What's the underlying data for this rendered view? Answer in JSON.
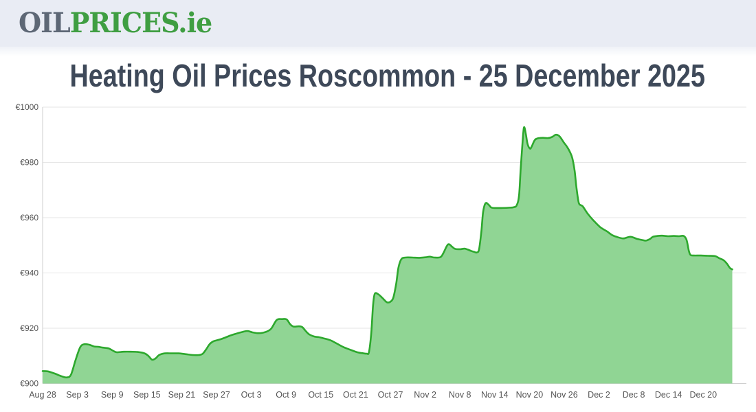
{
  "page": {
    "background": "#ffffff",
    "header_background": "#e9ecf4"
  },
  "header": {
    "logo": {
      "part_oil": "OIL",
      "part_prices": "PRICES",
      "part_ie": ".ie",
      "oil_color": "#5d6775",
      "green_color": "#3f9e42"
    }
  },
  "main": {
    "title": "Heating Oil Prices Roscommon - 25 December 2025",
    "title_color": "#3e4959"
  },
  "chart_data": {
    "type": "area",
    "title": "Heating Oil Prices Roscommon - 25 December 2025",
    "series_name": "Heating Oil Price Roscommon",
    "unit": "€",
    "ylim": [
      900,
      1000
    ],
    "y_ticks": [
      900,
      920,
      940,
      960,
      980,
      1000
    ],
    "y_tick_labels": [
      "€900",
      "€920",
      "€940",
      "€960",
      "€980",
      "€1000"
    ],
    "x_tick_labels": [
      "Aug 28",
      "Sep 3",
      "Sep 9",
      "Sep 15",
      "Sep 21",
      "Sep 27",
      "Oct 3",
      "Oct 9",
      "Oct 15",
      "Oct 21",
      "Oct 27",
      "Nov 2",
      "Nov 8",
      "Nov 14",
      "Nov 20",
      "Nov 26",
      "Dec 2",
      "Dec 8",
      "Dec 14",
      "Dec 20"
    ],
    "x_tick_days": [
      0,
      6,
      12,
      18,
      24,
      30,
      36,
      42,
      48,
      54,
      60,
      66,
      72,
      78,
      84,
      90,
      96,
      102,
      108,
      114
    ],
    "x_domain_days": [
      0,
      119
    ],
    "grid": "horizontal-only",
    "legend": "none",
    "line_color": "#2da82d",
    "fill_color": "#90d594",
    "axis_line_color": "#cfcfcf",
    "gridline_color": "#e6e6e6",
    "tick_label_color": "#555555",
    "points_day_price": [
      [
        0,
        904.5
      ],
      [
        0.9,
        904.4
      ],
      [
        2.1,
        903.6
      ],
      [
        3.3,
        902.6
      ],
      [
        4.2,
        902.2
      ],
      [
        4.9,
        903.2
      ],
      [
        5.7,
        908.6
      ],
      [
        6.5,
        913.2
      ],
      [
        7.2,
        914.2
      ],
      [
        8.1,
        914.0
      ],
      [
        8.9,
        913.4
      ],
      [
        9.6,
        913.3
      ],
      [
        10.4,
        913.0
      ],
      [
        11.4,
        912.7
      ],
      [
        12.2,
        911.8
      ],
      [
        12.8,
        911.3
      ],
      [
        14,
        911.5
      ],
      [
        15.2,
        911.5
      ],
      [
        16.4,
        911.4
      ],
      [
        17.6,
        910.9
      ],
      [
        18.3,
        909.9
      ],
      [
        18.9,
        908.6
      ],
      [
        19.5,
        909.1
      ],
      [
        20.1,
        910.3
      ],
      [
        21.1,
        910.9
      ],
      [
        22.3,
        910.9
      ],
      [
        23.5,
        910.9
      ],
      [
        24.7,
        910.6
      ],
      [
        25.9,
        910.3
      ],
      [
        27,
        910.3
      ],
      [
        27.6,
        910.7
      ],
      [
        28.2,
        912.3
      ],
      [
        28.8,
        914.2
      ],
      [
        29.4,
        915.2
      ],
      [
        30.2,
        915.7
      ],
      [
        31.1,
        916.3
      ],
      [
        32.3,
        917.3
      ],
      [
        33,
        917.8
      ],
      [
        34.2,
        918.5
      ],
      [
        35.3,
        919
      ],
      [
        36.2,
        918.5
      ],
      [
        37.1,
        918.2
      ],
      [
        38.1,
        918.4
      ],
      [
        38.9,
        919
      ],
      [
        39.5,
        920
      ],
      [
        40.4,
        923
      ],
      [
        41.3,
        923.3
      ],
      [
        42.1,
        923.2
      ],
      [
        42.7,
        921.5
      ],
      [
        43.3,
        920.6
      ],
      [
        44.2,
        920.7
      ],
      [
        44.8,
        920.4
      ],
      [
        45.4,
        919
      ],
      [
        46,
        917.8
      ],
      [
        46.9,
        917
      ],
      [
        47.6,
        916.8
      ],
      [
        48.4,
        916.4
      ],
      [
        49.6,
        915.7
      ],
      [
        50.8,
        914.4
      ],
      [
        51.9,
        913.2
      ],
      [
        53.1,
        912.2
      ],
      [
        54.3,
        911.3
      ],
      [
        55.1,
        911
      ],
      [
        55.9,
        910.8
      ],
      [
        56.3,
        911.3
      ],
      [
        56.7,
        918
      ],
      [
        57,
        928
      ],
      [
        57.3,
        932.4
      ],
      [
        57.9,
        932.3
      ],
      [
        58.6,
        931
      ],
      [
        59.4,
        929.4
      ],
      [
        60,
        929.6
      ],
      [
        60.5,
        931
      ],
      [
        61,
        936
      ],
      [
        61.4,
        942
      ],
      [
        61.9,
        945
      ],
      [
        62.6,
        945.6
      ],
      [
        63.8,
        945.6
      ],
      [
        65,
        945.5
      ],
      [
        66.2,
        945.7
      ],
      [
        66.8,
        945.9
      ],
      [
        67.6,
        945.6
      ],
      [
        68.6,
        945.7
      ],
      [
        69.1,
        947
      ],
      [
        69.7,
        949.6
      ],
      [
        70.1,
        950.4
      ],
      [
        70.7,
        949.4
      ],
      [
        71.2,
        948.7
      ],
      [
        72.1,
        948.6
      ],
      [
        72.8,
        948.8
      ],
      [
        73.3,
        948.5
      ],
      [
        73.9,
        948
      ],
      [
        74.5,
        947.6
      ],
      [
        74.9,
        947.4
      ],
      [
        75.3,
        948.5
      ],
      [
        75.7,
        955
      ],
      [
        76,
        962
      ],
      [
        76.4,
        965.2
      ],
      [
        76.9,
        964.8
      ],
      [
        77.4,
        963.7
      ],
      [
        78,
        963.5
      ],
      [
        79.2,
        963.5
      ],
      [
        80.4,
        963.6
      ],
      [
        81.3,
        963.8
      ],
      [
        81.8,
        964.5
      ],
      [
        82.2,
        968
      ],
      [
        82.5,
        978
      ],
      [
        82.9,
        990
      ],
      [
        83.1,
        992.8
      ],
      [
        83.4,
        990
      ],
      [
        83.7,
        986.5
      ],
      [
        84.1,
        985
      ],
      [
        84.4,
        985.8
      ],
      [
        84.9,
        988
      ],
      [
        85.4,
        988.7
      ],
      [
        86.3,
        988.9
      ],
      [
        87.2,
        988.8
      ],
      [
        87.9,
        989.2
      ],
      [
        88.5,
        990
      ],
      [
        89,
        989.8
      ],
      [
        89.4,
        988.9
      ],
      [
        89.9,
        987.3
      ],
      [
        90.5,
        985.6
      ],
      [
        91,
        983.7
      ],
      [
        91.4,
        981.5
      ],
      [
        91.8,
        977
      ],
      [
        92.1,
        971
      ],
      [
        92.5,
        965.5
      ],
      [
        92.9,
        964.5
      ],
      [
        93.2,
        964.1
      ],
      [
        94,
        961.6
      ],
      [
        95,
        959.1
      ],
      [
        96.2,
        956.6
      ],
      [
        97.4,
        955
      ],
      [
        98.2,
        953.8
      ],
      [
        99,
        953.1
      ],
      [
        100.2,
        952.5
      ],
      [
        101.4,
        953.1
      ],
      [
        102.6,
        952.3
      ],
      [
        103.5,
        951.9
      ],
      [
        104.1,
        951.7
      ],
      [
        104.8,
        952.3
      ],
      [
        105.3,
        953.1
      ],
      [
        106.1,
        953.4
      ],
      [
        106.9,
        953.5
      ],
      [
        107.9,
        953.3
      ],
      [
        108.9,
        953.4
      ],
      [
        109.8,
        953.3
      ],
      [
        110.6,
        953.4
      ],
      [
        111.1,
        952
      ],
      [
        111.5,
        948
      ],
      [
        111.8,
        946.5
      ],
      [
        112.4,
        946.3
      ],
      [
        113.6,
        946.3
      ],
      [
        114.8,
        946.2
      ],
      [
        116,
        946.1
      ],
      [
        116.8,
        945.3
      ],
      [
        117.5,
        944.6
      ],
      [
        118.1,
        943.3
      ],
      [
        118.6,
        941.8
      ],
      [
        119,
        941.3
      ]
    ]
  }
}
